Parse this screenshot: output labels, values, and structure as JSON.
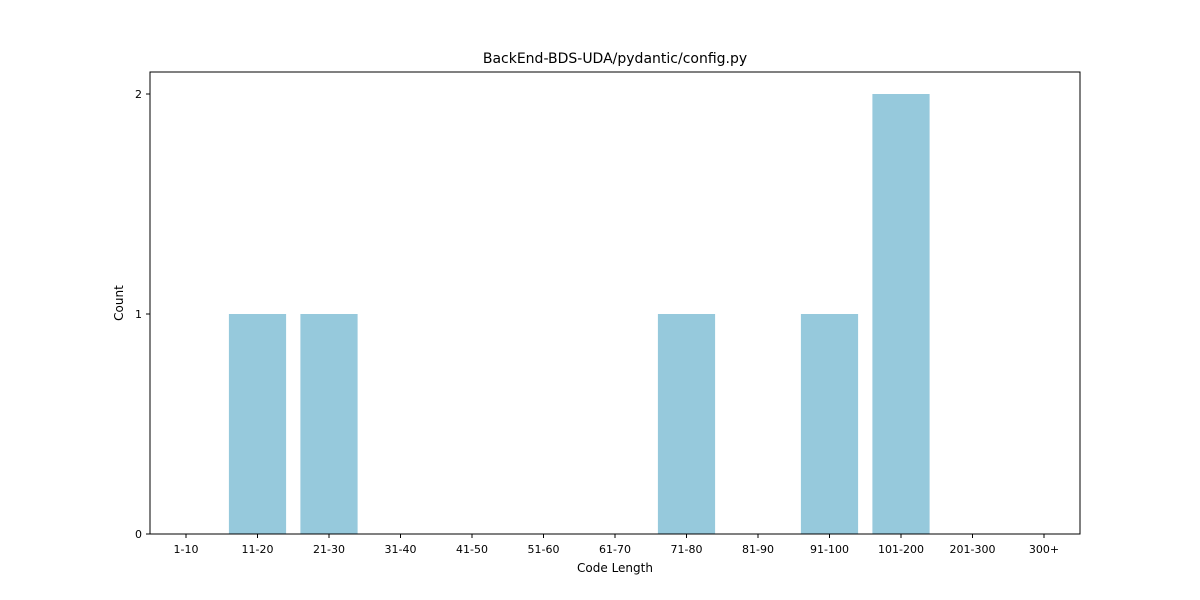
{
  "chart_data": {
    "type": "bar",
    "title": "BackEnd-BDS-UDA/pydantic/config.py",
    "xlabel": "Code Length",
    "ylabel": "Count",
    "categories": [
      "1-10",
      "11-20",
      "21-30",
      "31-40",
      "41-50",
      "51-60",
      "61-70",
      "71-80",
      "81-90",
      "91-100",
      "101-200",
      "201-300",
      "300+"
    ],
    "values": [
      0,
      1,
      1,
      0,
      0,
      0,
      0,
      1,
      0,
      1,
      2,
      0,
      0
    ],
    "yticks": [
      0,
      1,
      2
    ],
    "ylim": [
      0,
      2.1
    ],
    "bar_color": "#96c9dc",
    "grid": false,
    "legend": "none"
  }
}
